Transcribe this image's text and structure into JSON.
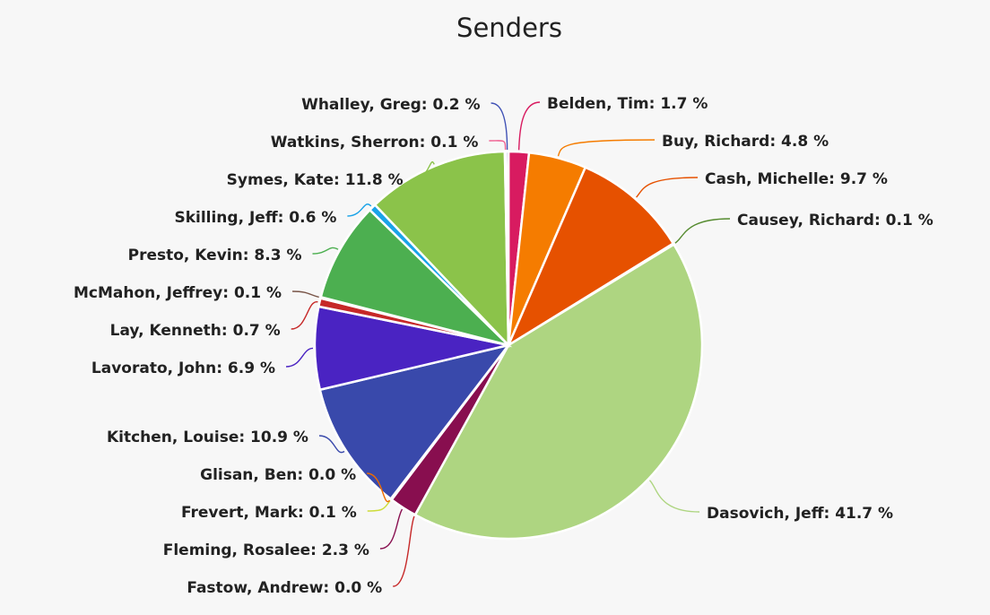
{
  "chart_data": {
    "type": "pie",
    "title": "Senders",
    "slices": [
      {
        "label": "Belden, Tim",
        "value": 1.7,
        "value_text": "1.7 %",
        "color": "#d81b60"
      },
      {
        "label": "Buy, Richard",
        "value": 4.8,
        "value_text": "4.8 %",
        "color": "#f57c00"
      },
      {
        "label": "Cash, Michelle",
        "value": 9.7,
        "value_text": "9.7 %",
        "color": "#e65100"
      },
      {
        "label": "Causey, Richard",
        "value": 0.1,
        "value_text": "0.1 %",
        "color": "#558b2f"
      },
      {
        "label": "Dasovich, Jeff",
        "value": 41.7,
        "value_text": "41.7 %",
        "color": "#aed581"
      },
      {
        "label": "Fastow, Andrew",
        "value": 0.0,
        "value_text": "0.0 %",
        "color": "#c62828"
      },
      {
        "label": "Fleming, Rosalee",
        "value": 2.3,
        "value_text": "2.3 %",
        "color": "#880e4f"
      },
      {
        "label": "Frevert, Mark",
        "value": 0.1,
        "value_text": "0.1 %",
        "color": "#cddc39"
      },
      {
        "label": "Glisan, Ben",
        "value": 0.0,
        "value_text": "0.0 %",
        "color": "#ef6c00"
      },
      {
        "label": "Kitchen, Louise",
        "value": 10.9,
        "value_text": "10.9 %",
        "color": "#3949ab"
      },
      {
        "label": "Lavorato, John",
        "value": 6.9,
        "value_text": "6.9 %",
        "color": "#4a23c2"
      },
      {
        "label": "Lay, Kenneth",
        "value": 0.7,
        "value_text": "0.7 %",
        "color": "#c62828"
      },
      {
        "label": "McMahon, Jeffrey",
        "value": 0.1,
        "value_text": "0.1 %",
        "color": "#795548"
      },
      {
        "label": "Presto, Kevin",
        "value": 8.3,
        "value_text": "8.3 %",
        "color": "#4caf50"
      },
      {
        "label": "Skilling, Jeff",
        "value": 0.6,
        "value_text": "0.6 %",
        "color": "#1aa3e8"
      },
      {
        "label": "Symes, Kate",
        "value": 11.8,
        "value_text": "11.8 %",
        "color": "#8bc34a"
      },
      {
        "label": "Watkins, Sherron",
        "value": 0.1,
        "value_text": "0.1 %",
        "color": "#f06292"
      },
      {
        "label": "Whalley, Greg",
        "value": 0.2,
        "value_text": "0.2 %",
        "color": "#3f51b5"
      }
    ],
    "legend": "none",
    "data_labels": "outside-with-leader-lines"
  }
}
